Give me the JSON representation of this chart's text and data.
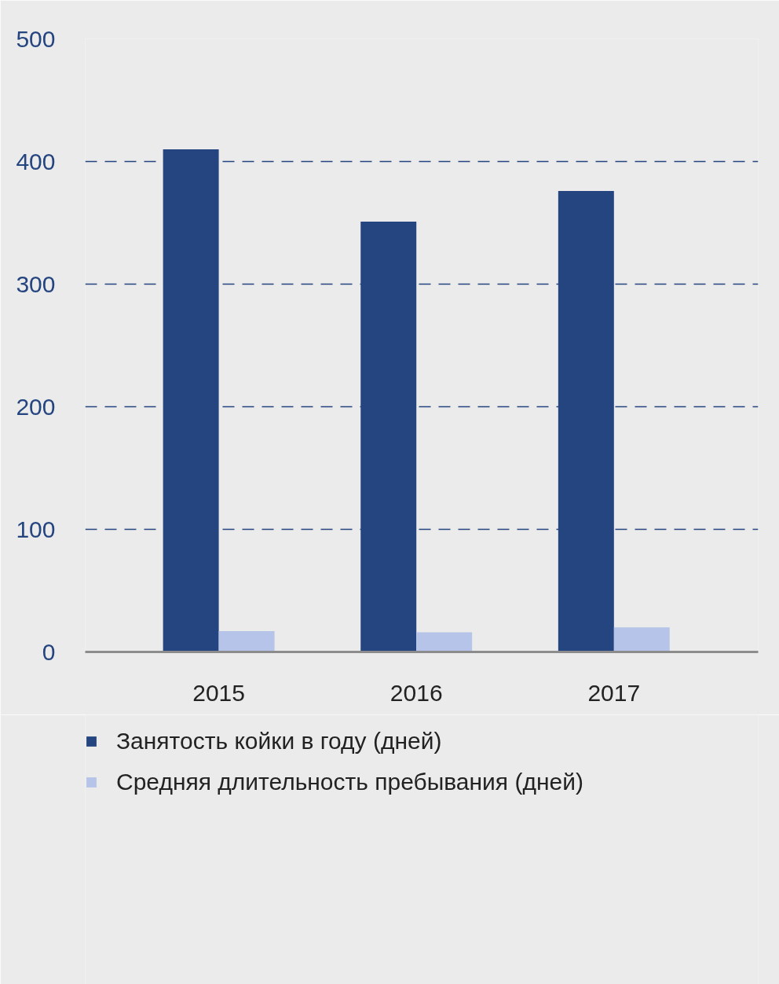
{
  "chart_data": {
    "type": "bar",
    "categories": [
      "2015",
      "2016",
      "2017"
    ],
    "series": [
      {
        "name": "Занятость койки в году (дней)",
        "color": "#24457f",
        "values": [
          410,
          351,
          376
        ]
      },
      {
        "name": "Средняя длительность пребывания (дней)",
        "color": "#b5c4e8",
        "values": [
          17,
          16,
          20
        ]
      }
    ],
    "ylim": [
      0,
      500
    ],
    "yticks": [
      0,
      100,
      200,
      300,
      400,
      500
    ],
    "grid": "y",
    "legend": "bottom"
  }
}
